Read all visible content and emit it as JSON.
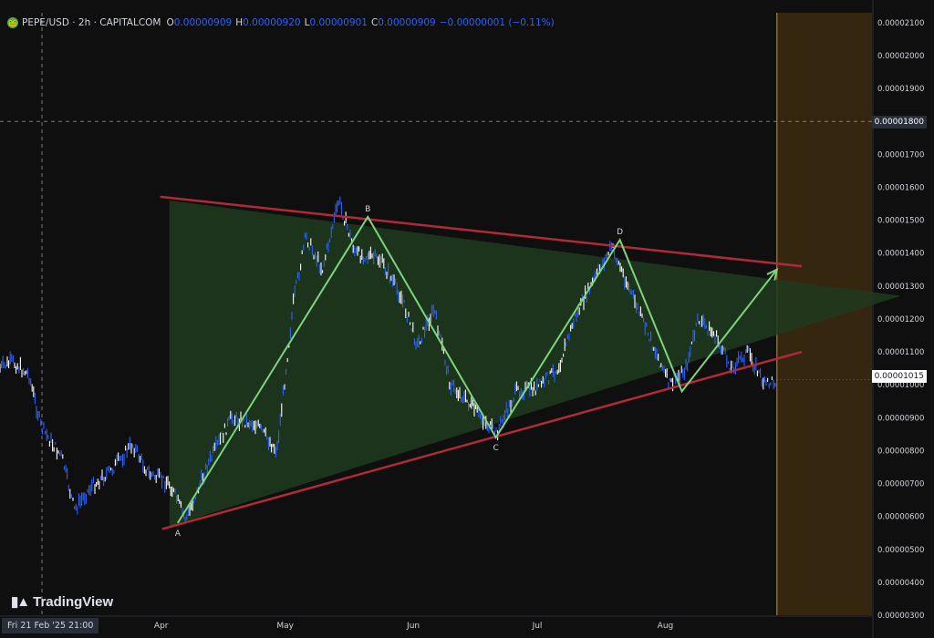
{
  "header": {
    "symbol": "PEPE/USD · 2h · CAPITALCOM",
    "open_label": "O",
    "open": "0.00000909",
    "high_label": "H",
    "high": "0.00000920",
    "low_label": "L",
    "low": "0.00000901",
    "close_label": "C",
    "close": "0.00000909",
    "change": "−0.00000001 (−0.11%)"
  },
  "brand": {
    "name": "TradingView"
  },
  "crosshair": {
    "date_label": "Fri 21 Feb '25  21:00",
    "price_label": "0.00001800"
  },
  "last_price": {
    "label": "0.00001015"
  },
  "colors": {
    "background": "#0f0f0f",
    "candle": "#2962ff",
    "candle_light": "#ffffff",
    "triangle_fill": "#1f3a1f",
    "triangle_line": "#b02a37",
    "wave": "#7ed47e",
    "projection": "#3a2a10",
    "projection_line": "#e08b1a"
  },
  "chart_data": {
    "type": "line",
    "symbol": "PEPE/USD",
    "interval": "2h",
    "y_ticks": [
      "0.00002100",
      "0.00002000",
      "0.00001900",
      "0.00001800",
      "0.00001700",
      "0.00001600",
      "0.00001500",
      "0.00001400",
      "0.00001300",
      "0.00001200",
      "0.00001100",
      "0.00001000",
      "0.00000900",
      "0.00000800",
      "0.00000700",
      "0.00000600",
      "0.00000500",
      "0.00000400",
      "0.00000300"
    ],
    "ylim": [
      3e-06,
      2.13e-05
    ],
    "x_ticks": [
      "Apr",
      "May",
      "Jun",
      "Jul",
      "Aug"
    ],
    "xlim": [
      "2025-02-21",
      "2025-09-20"
    ],
    "grid": false,
    "price_path": [
      {
        "x": "2025-02-21",
        "y": 1.05e-05
      },
      {
        "x": "2025-02-24",
        "y": 1.07e-05
      },
      {
        "x": "2025-02-28",
        "y": 1.03e-05
      },
      {
        "x": "2025-03-03",
        "y": 8.7e-06
      },
      {
        "x": "2025-03-08",
        "y": 7.8e-06
      },
      {
        "x": "2025-03-11",
        "y": 6.2e-06
      },
      {
        "x": "2025-03-15",
        "y": 6.9e-06
      },
      {
        "x": "2025-03-20",
        "y": 7.4e-06
      },
      {
        "x": "2025-03-25",
        "y": 8.2e-06
      },
      {
        "x": "2025-03-29",
        "y": 7.3e-06
      },
      {
        "x": "2025-04-03",
        "y": 7e-06
      },
      {
        "x": "2025-04-07",
        "y": 5.9e-06
      },
      {
        "x": "2025-04-12",
        "y": 7.5e-06
      },
      {
        "x": "2025-04-18",
        "y": 9e-06
      },
      {
        "x": "2025-04-24",
        "y": 8.8e-06
      },
      {
        "x": "2025-04-29",
        "y": 8e-06
      },
      {
        "x": "2025-05-03",
        "y": 1.25e-05
      },
      {
        "x": "2025-05-06",
        "y": 1.45e-05
      },
      {
        "x": "2025-05-10",
        "y": 1.35e-05
      },
      {
        "x": "2025-05-14",
        "y": 1.56e-05
      },
      {
        "x": "2025-05-18",
        "y": 1.4e-05
      },
      {
        "x": "2025-05-24",
        "y": 1.38e-05
      },
      {
        "x": "2025-05-29",
        "y": 1.27e-05
      },
      {
        "x": "2025-06-02",
        "y": 1.12e-05
      },
      {
        "x": "2025-06-06",
        "y": 1.23e-05
      },
      {
        "x": "2025-06-10",
        "y": 1e-05
      },
      {
        "x": "2025-06-14",
        "y": 9.5e-06
      },
      {
        "x": "2025-06-21",
        "y": 8.5e-06
      },
      {
        "x": "2025-06-26",
        "y": 9.8e-06
      },
      {
        "x": "2025-07-01",
        "y": 9.9e-06
      },
      {
        "x": "2025-07-06",
        "y": 1.05e-05
      },
      {
        "x": "2025-07-10",
        "y": 1.2e-05
      },
      {
        "x": "2025-07-14",
        "y": 1.3e-05
      },
      {
        "x": "2025-07-19",
        "y": 1.42e-05
      },
      {
        "x": "2025-07-23",
        "y": 1.3e-05
      },
      {
        "x": "2025-07-28",
        "y": 1.15e-05
      },
      {
        "x": "2025-08-02",
        "y": 1e-05
      },
      {
        "x": "2025-08-06",
        "y": 1.05e-05
      },
      {
        "x": "2025-08-09",
        "y": 1.2e-05
      },
      {
        "x": "2025-08-13",
        "y": 1.15e-05
      },
      {
        "x": "2025-08-17",
        "y": 1.05e-05
      },
      {
        "x": "2025-08-21",
        "y": 1.1e-05
      },
      {
        "x": "2025-08-25",
        "y": 1e-05
      },
      {
        "x": "2025-08-28",
        "y": 1.015e-05
      }
    ],
    "triangle": {
      "upper": [
        {
          "x": "2025-04-03",
          "y": 1.56e-05
        },
        {
          "x": "2025-09-03",
          "y": 1.36e-05
        }
      ],
      "lower": [
        {
          "x": "2025-04-03",
          "y": 5.7e-06
        },
        {
          "x": "2025-09-03",
          "y": 1.1e-05
        }
      ],
      "apex": {
        "x": "2025-09-27",
        "y": 1.27e-05
      }
    },
    "wave_path": [
      {
        "x": "2025-04-05",
        "y": 5.8e-06
      },
      {
        "x": "2025-05-21",
        "y": 1.51e-05
      },
      {
        "x": "2025-06-21",
        "y": 8.4e-06
      },
      {
        "x": "2025-07-21",
        "y": 1.44e-05
      },
      {
        "x": "2025-08-05",
        "y": 9.8e-06
      },
      {
        "x": "2025-08-28",
        "y": 1.35e-05
      }
    ],
    "wave_labels": [
      {
        "text": "A",
        "x": "2025-04-05",
        "y": 5.8e-06
      },
      {
        "text": "B",
        "x": "2025-05-21",
        "y": 1.51e-05
      },
      {
        "text": "C",
        "x": "2025-06-21",
        "y": 8.4e-06
      },
      {
        "text": "D",
        "x": "2025-07-21",
        "y": 1.44e-05
      }
    ],
    "projection_zone": {
      "from": "2025-08-28",
      "to": "2025-10-30"
    },
    "crosshair": {
      "x": "2025-02-21",
      "y": 1.8e-05
    },
    "last": 1.015e-05
  }
}
